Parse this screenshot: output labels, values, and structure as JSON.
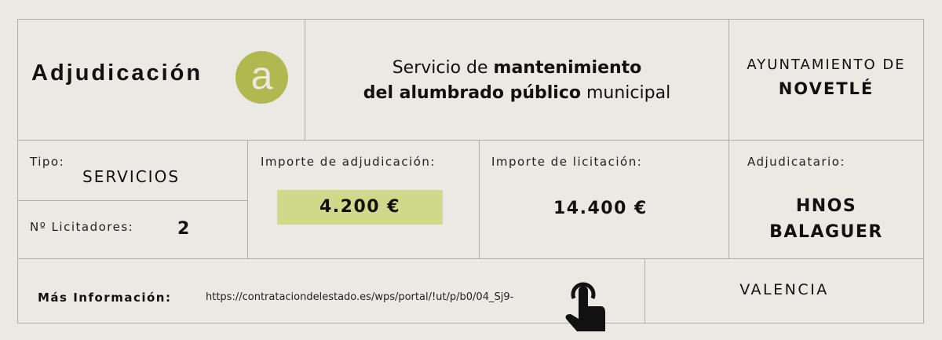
{
  "header": {
    "title": "Adjudicación",
    "logo_letter": "a",
    "service_line1_normal": "Servicio de ",
    "service_line1_bold": "mantenimiento",
    "service_line2_bold": "del alumbrado público",
    "service_line2_normal": " municipal",
    "org_line1": "AYUNTAMIENTO DE",
    "org_line2": "NOVETLÉ"
  },
  "details": {
    "tipo_label": "Tipo:",
    "tipo_value": "SERVICIOS",
    "licitadores_label": "Nº Licitadores:",
    "licitadores_value": "2",
    "adjudicacion_label": "Importe de adjudicación:",
    "adjudicacion_value": "4.200 €",
    "licitacion_label": "Importe de licitación:",
    "licitacion_value": "14.400 €",
    "adjudicatario_label": "Adjudicatario:",
    "adjudicatario_line1": "HNOS",
    "adjudicatario_line2": "BALAGUER"
  },
  "footer": {
    "info_label": "Más Información:",
    "url": "https://contrataciondelestado.es/wps/portal/!ut/p/b0/04_Sj9-",
    "pointer_icon": "hand-pointer-icon",
    "region": "VALENCIA"
  },
  "colors": {
    "accent": "#b0b84f",
    "highlight": "#d0d88a",
    "background": "#ebe9e4",
    "border": "#adadaa"
  }
}
